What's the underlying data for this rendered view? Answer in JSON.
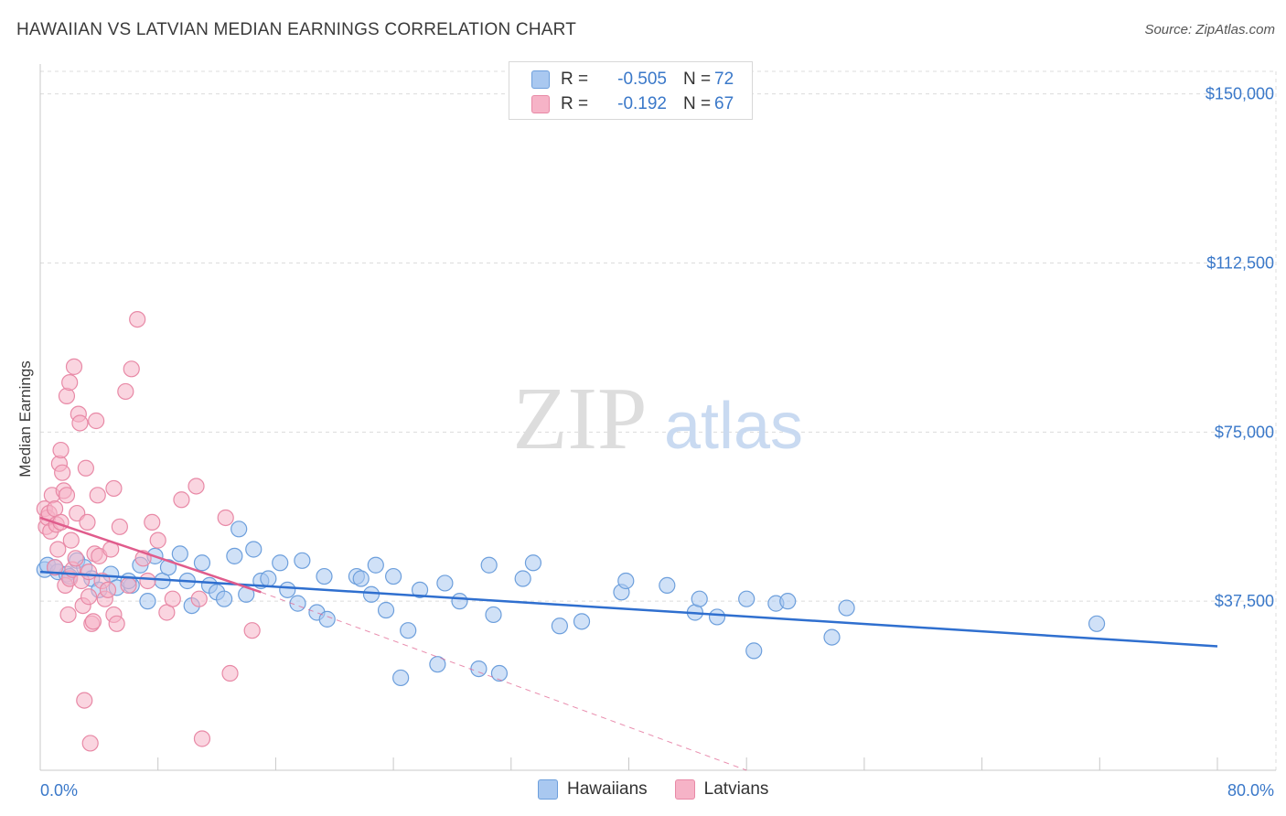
{
  "title": "HAWAIIAN VS LATVIAN MEDIAN EARNINGS CORRELATION CHART",
  "source": "Source: ZipAtlas.com",
  "watermark": {
    "zip": "ZIP",
    "atlas": "atlas"
  },
  "colors": {
    "blue_fill": "#a9c8f0",
    "blue_stroke": "#6d9fdc",
    "blue_line": "#2f6fcf",
    "pink_fill": "#f6b3c7",
    "pink_stroke": "#e889a6",
    "pink_line": "#e05c8c",
    "axis_text": "#3a78c9",
    "grid": "#dcdcdc"
  },
  "legend": {
    "rows": [
      {
        "r_label": "R =",
        "r_value": "-0.505",
        "n_label": "N =",
        "n_value": "72",
        "color": "#a9c8f0",
        "border": "#6d9fdc"
      },
      {
        "r_label": "R =",
        "r_value": "-0.192",
        "n_label": "N =",
        "n_value": "67",
        "color": "#f6b3c7",
        "border": "#e889a6"
      }
    ]
  },
  "bottom_legend": [
    {
      "label": "Hawaiians",
      "color": "#a9c8f0",
      "border": "#6d9fdc"
    },
    {
      "label": "Latvians",
      "color": "#f6b3c7",
      "border": "#e889a6"
    }
  ],
  "chart_data": {
    "type": "scatter",
    "title": "HAWAIIAN VS LATVIAN MEDIAN EARNINGS CORRELATION CHART",
    "xlabel": "",
    "ylabel": "Median Earnings",
    "xlim": [
      0,
      80
    ],
    "ylim": [
      0,
      155000
    ],
    "x_tick_labels": [
      "0.0%",
      "80.0%"
    ],
    "y_ticks": [
      {
        "value": 150000,
        "label": "$150,000"
      },
      {
        "value": 112500,
        "label": "$112,500"
      },
      {
        "value": 75000,
        "label": "$75,000"
      },
      {
        "value": 37500,
        "label": "$37,500"
      }
    ],
    "grid": true,
    "legend_position": "top-center",
    "series": [
      {
        "name": "Hawaiians",
        "r": -0.505,
        "n": 72,
        "trend": {
          "x": [
            0,
            80
          ],
          "y": [
            44000,
            27500
          ],
          "dashed_extension": false
        },
        "points": [
          [
            0.3,
            44500
          ],
          [
            0.5,
            45500
          ],
          [
            1.2,
            44000
          ],
          [
            1.8,
            43500
          ],
          [
            2.5,
            46500
          ],
          [
            3.0,
            45000
          ],
          [
            3.5,
            42500
          ],
          [
            4.0,
            40000
          ],
          [
            4.8,
            43500
          ],
          [
            5.2,
            40500
          ],
          [
            6.2,
            41000
          ],
          [
            6.0,
            42000
          ],
          [
            6.8,
            45500
          ],
          [
            7.3,
            37500
          ],
          [
            7.8,
            47500
          ],
          [
            8.3,
            42000
          ],
          [
            8.7,
            45000
          ],
          [
            9.5,
            48000
          ],
          [
            10.0,
            42000
          ],
          [
            10.3,
            36500
          ],
          [
            11.0,
            46000
          ],
          [
            11.5,
            41000
          ],
          [
            12.0,
            39500
          ],
          [
            12.5,
            38000
          ],
          [
            13.2,
            47500
          ],
          [
            13.5,
            53500
          ],
          [
            14.0,
            39000
          ],
          [
            14.5,
            49000
          ],
          [
            15.0,
            42000
          ],
          [
            15.5,
            42500
          ],
          [
            16.3,
            46000
          ],
          [
            16.8,
            40000
          ],
          [
            17.5,
            37000
          ],
          [
            17.8,
            46500
          ],
          [
            18.8,
            35000
          ],
          [
            19.3,
            43000
          ],
          [
            19.5,
            33500
          ],
          [
            21.5,
            43000
          ],
          [
            21.8,
            42500
          ],
          [
            22.5,
            39000
          ],
          [
            22.8,
            45500
          ],
          [
            23.5,
            35500
          ],
          [
            24.0,
            43000
          ],
          [
            24.5,
            20500
          ],
          [
            25.0,
            31000
          ],
          [
            25.8,
            40000
          ],
          [
            27.0,
            23500
          ],
          [
            27.5,
            41500
          ],
          [
            28.5,
            37500
          ],
          [
            29.8,
            22500
          ],
          [
            30.5,
            45500
          ],
          [
            30.8,
            34500
          ],
          [
            31.2,
            21500
          ],
          [
            32.8,
            42500
          ],
          [
            33.5,
            46000
          ],
          [
            35.3,
            32000
          ],
          [
            36.8,
            33000
          ],
          [
            39.5,
            39500
          ],
          [
            39.8,
            42000
          ],
          [
            42.6,
            41000
          ],
          [
            44.5,
            35000
          ],
          [
            44.8,
            38000
          ],
          [
            46.0,
            34000
          ],
          [
            48.0,
            38000
          ],
          [
            48.5,
            26500
          ],
          [
            50.0,
            37000
          ],
          [
            50.8,
            37500
          ],
          [
            53.8,
            29500
          ],
          [
            54.8,
            36000
          ],
          [
            71.8,
            32500
          ],
          [
            1.0,
            45000
          ],
          [
            2.0,
            43000
          ]
        ]
      },
      {
        "name": "Latvians",
        "r": -0.192,
        "n": 67,
        "trend": {
          "x": [
            0,
            15
          ],
          "y": [
            56000,
            39500
          ],
          "dashed_extension_to": [
            48,
            0
          ]
        },
        "points": [
          [
            0.3,
            58000
          ],
          [
            0.4,
            54000
          ],
          [
            0.5,
            56000
          ],
          [
            0.6,
            57000
          ],
          [
            0.7,
            53000
          ],
          [
            0.8,
            61000
          ],
          [
            1.0,
            45000
          ],
          [
            1.0,
            58000
          ],
          [
            1.1,
            54500
          ],
          [
            1.2,
            49000
          ],
          [
            1.3,
            68000
          ],
          [
            1.4,
            55000
          ],
          [
            1.4,
            71000
          ],
          [
            1.5,
            66000
          ],
          [
            1.6,
            62000
          ],
          [
            1.7,
            41000
          ],
          [
            1.8,
            83000
          ],
          [
            1.8,
            61000
          ],
          [
            1.9,
            34500
          ],
          [
            2.0,
            86000
          ],
          [
            2.0,
            42500
          ],
          [
            2.1,
            51000
          ],
          [
            2.2,
            44500
          ],
          [
            2.3,
            89500
          ],
          [
            2.4,
            47000
          ],
          [
            2.5,
            57000
          ],
          [
            2.6,
            79000
          ],
          [
            2.7,
            77000
          ],
          [
            2.8,
            42000
          ],
          [
            2.9,
            36500
          ],
          [
            3.0,
            15500
          ],
          [
            3.1,
            67000
          ],
          [
            3.2,
            55000
          ],
          [
            3.3,
            44000
          ],
          [
            3.4,
            6000
          ],
          [
            3.5,
            32500
          ],
          [
            3.6,
            33000
          ],
          [
            3.7,
            48000
          ],
          [
            3.8,
            77500
          ],
          [
            3.9,
            61000
          ],
          [
            4.0,
            47500
          ],
          [
            4.2,
            42000
          ],
          [
            4.4,
            38000
          ],
          [
            4.6,
            40000
          ],
          [
            4.8,
            49000
          ],
          [
            5.0,
            34500
          ],
          [
            5.0,
            62500
          ],
          [
            5.2,
            32500
          ],
          [
            5.4,
            54000
          ],
          [
            5.8,
            84000
          ],
          [
            6.2,
            89000
          ],
          [
            6.6,
            100000
          ],
          [
            7.0,
            47000
          ],
          [
            7.3,
            42000
          ],
          [
            7.6,
            55000
          ],
          [
            8.0,
            51000
          ],
          [
            8.6,
            35000
          ],
          [
            9.0,
            38000
          ],
          [
            9.6,
            60000
          ],
          [
            10.6,
            63000
          ],
          [
            10.8,
            38000
          ],
          [
            11.0,
            7000
          ],
          [
            12.6,
            56000
          ],
          [
            12.9,
            21500
          ],
          [
            14.4,
            31000
          ],
          [
            6.0,
            41000
          ],
          [
            3.3,
            38500
          ]
        ]
      }
    ]
  }
}
